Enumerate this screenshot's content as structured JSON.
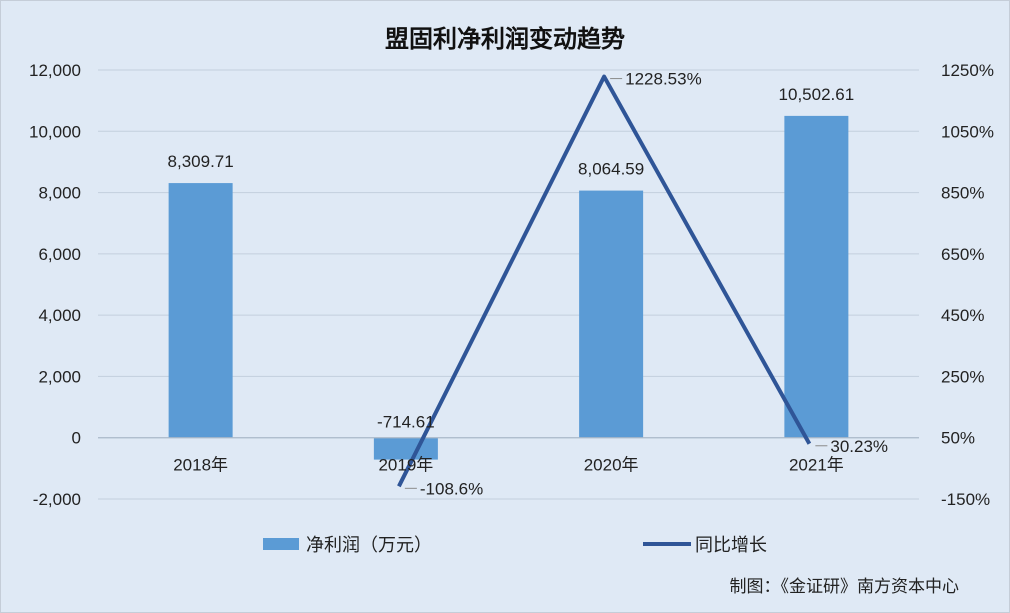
{
  "chart_data": {
    "type": "bar",
    "title": "盟固利净利润变动趋势",
    "categories": [
      "2018年",
      "2019年",
      "2020年",
      "2021年"
    ],
    "series": [
      {
        "name": "净利润（万元）",
        "type": "bar",
        "axis": "left",
        "color": "#5b9bd5",
        "values": [
          8309.71,
          -714.61,
          8064.59,
          10502.61
        ],
        "labels": [
          "8,309.71",
          "-714.61",
          "8,064.59",
          "10,502.61"
        ]
      },
      {
        "name": "同比增长",
        "type": "line",
        "axis": "right",
        "color": "#2f5597",
        "values": [
          null,
          -108.6,
          1228.53,
          30.23
        ],
        "labels": [
          "",
          "-108.6%",
          "1228.53%",
          "30.23%"
        ]
      }
    ],
    "y_left": {
      "range": [
        -2000,
        12000
      ],
      "ticks": [
        12000,
        10000,
        8000,
        6000,
        4000,
        2000,
        0,
        -2000
      ],
      "tick_labels": [
        "12,000",
        "10,000",
        "8,000",
        "6,000",
        "4,000",
        "2,000",
        "0",
        "-2,000"
      ]
    },
    "y_right": {
      "range": [
        -150,
        1250
      ],
      "ticks": [
        1250,
        1050,
        850,
        650,
        450,
        250,
        50,
        -150
      ],
      "tick_labels": [
        "1250%",
        "1050%",
        "850%",
        "650%",
        "450%",
        "250%",
        "50%",
        "-150%"
      ]
    },
    "grid": true,
    "legend_position": "bottom",
    "credit": "制图：《金证研》南方资本中心"
  }
}
